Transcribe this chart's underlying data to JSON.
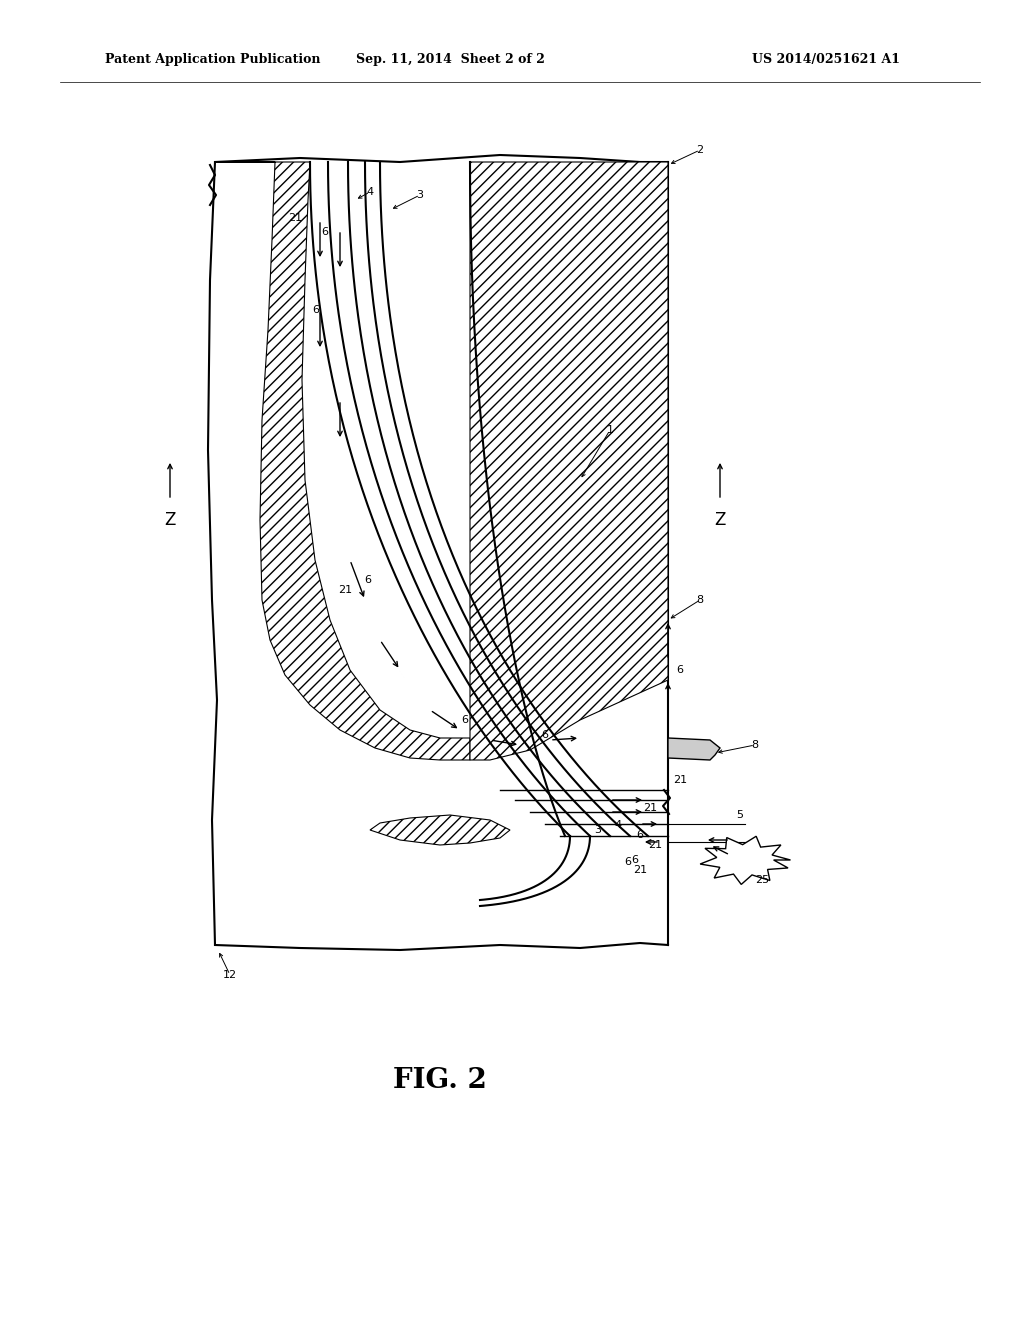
{
  "header_left": "Patent Application Publication",
  "header_center": "Sep. 11, 2014  Sheet 2 of 2",
  "header_right": "US 2014/0251621 A1",
  "bg_color": "#ffffff",
  "fig_label": "FIG. 2"
}
